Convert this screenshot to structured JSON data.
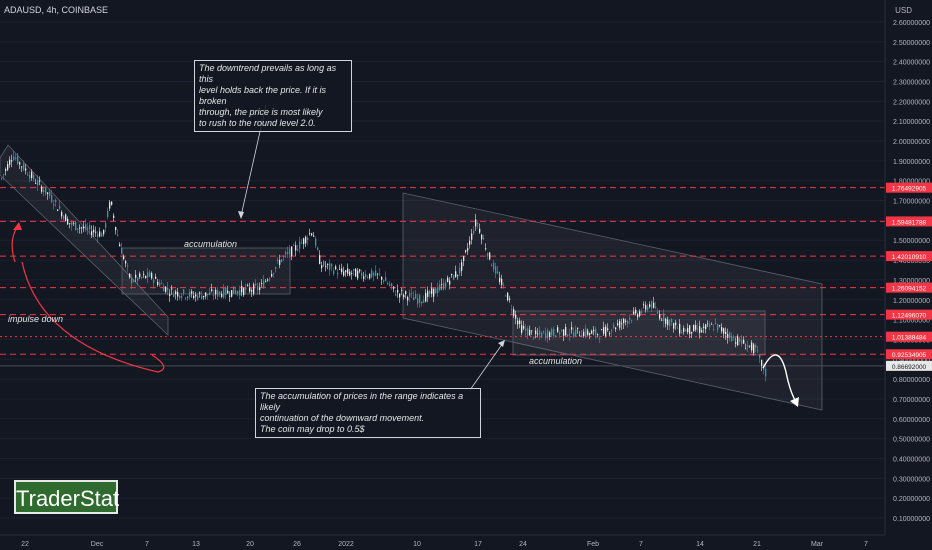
{
  "header": {
    "symbol": "ADAUSD, 4h, COINBASE",
    "currency": "USD"
  },
  "annotations": {
    "top_note": "The downtrend prevails as long as this\nlevel holds back the price. If it is broken\nthrough, the price is most likely\nto rush to the round level 2.0.",
    "bottom_note": "The accumulation of prices in the range indicates a likely\ncontinuation of the downward movement.\nThe coin may drop to 0.5$",
    "accumulation_left": "accumulation",
    "accumulation_right": "accumulation",
    "impulse_down": "impulse down"
  },
  "logo": {
    "text": "TraderStat"
  },
  "colors": {
    "background": "#131722",
    "bull": "#26a69a",
    "bear": "#e8e8e8",
    "level_line": "#f23645",
    "text": "#b2b5be"
  },
  "chart_data": {
    "type": "candlestick",
    "ylim": [
      0.045,
      2.63
    ],
    "y_ticks": [
      "2.60000000",
      "2.50000000",
      "2.40000000",
      "2.30000000",
      "2.20000000",
      "2.10000000",
      "2.00000000",
      "1.90000000",
      "1.80000000",
      "1.70000000",
      "1.60000000",
      "1.50000000",
      "1.40000000",
      "1.30000000",
      "1.20000000",
      "1.10000000",
      "1.00000000",
      "0.90000000",
      "0.80000000",
      "0.70000000",
      "0.60000000",
      "0.50000000",
      "0.40000000",
      "0.30000000",
      "0.20000000",
      "0.10000000"
    ],
    "x_ticks": [
      "22",
      "Dec",
      "7",
      "13",
      "20",
      "26",
      "2022",
      "10",
      "17",
      "24",
      "Feb",
      "7",
      "14",
      "21",
      "Mar",
      "7"
    ],
    "levels": [
      {
        "label": "1.76492905",
        "value": 1.76492905
      },
      {
        "label": "1.59481788",
        "value": 1.59481788
      },
      {
        "label": "1.42010910",
        "value": 1.4201091
      },
      {
        "label": "1.26094152",
        "value": 1.26094152
      },
      {
        "label": "1.12496070",
        "value": 1.1249607
      },
      {
        "label": "1.01388484",
        "value": 1.01388484,
        "style": "dotted"
      },
      {
        "label": "0.92534905",
        "value": 0.92534905
      }
    ],
    "last_price": {
      "label": "0.86692000",
      "value": 0.86692
    }
  }
}
